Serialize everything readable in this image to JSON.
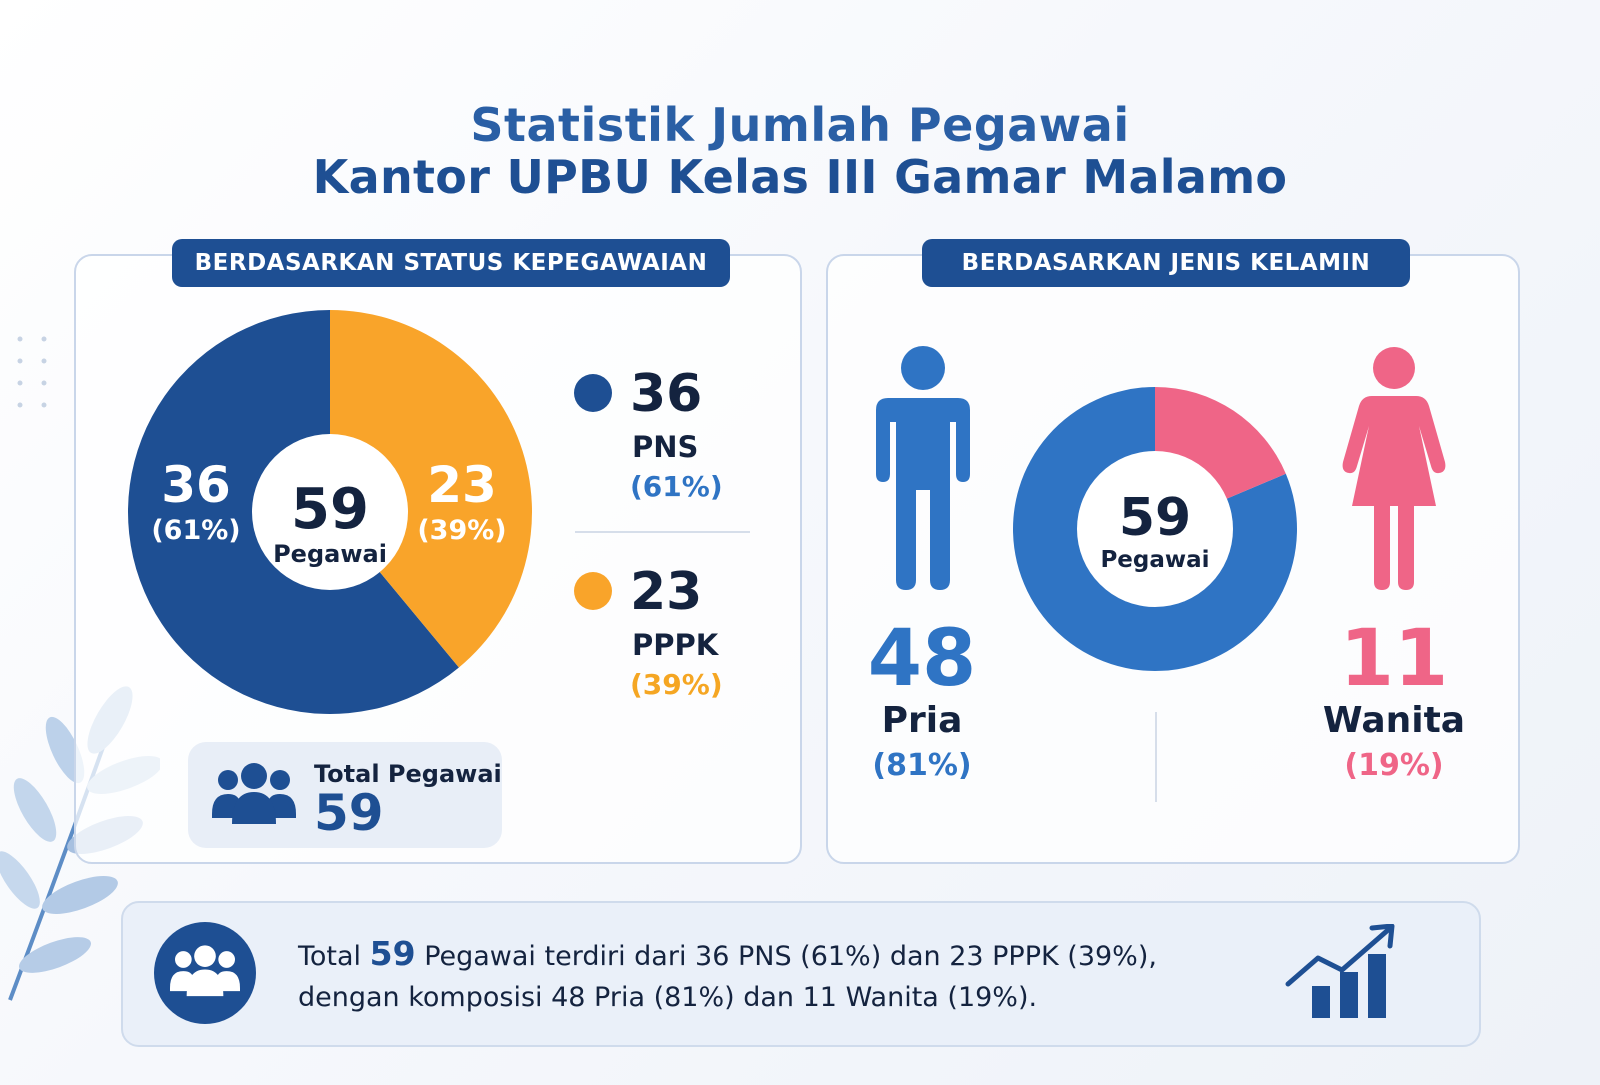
{
  "title": {
    "line1": "Statistik Jumlah Pegawai",
    "line2": "Kantor UPBU Kelas III Gamar Malamo"
  },
  "colors": {
    "title": "#2a5fa5",
    "header_bg": "#1e4f93",
    "pns": "#1e4f93",
    "pppk": "#f9a42a",
    "pria": "#2f74c4",
    "wanita": "#ef6587"
  },
  "status_panel": {
    "header": "BERDASARKAN STATUS KEPEGAWAIAN",
    "center_value": "59",
    "center_label": "Pegawai",
    "total_label": "Total Pegawai",
    "total_value": "59",
    "total_icon": "people-group-icon"
  },
  "gender_panel": {
    "header": "BERDASARKAN JENIS KELAMIN",
    "center_value": "59",
    "center_label": "Pegawai",
    "male_icon": "male-person-icon",
    "female_icon": "female-person-icon"
  },
  "summary": {
    "prefix": "Total",
    "total": "59",
    "line1_rest": "Pegawai terdiri dari 36 PNS (61%) dan 23 PPPK (39%),",
    "line2": "dengan komposisi 48 Pria (81%) dan 11 Wanita (19%).",
    "icon": "people-group-icon",
    "trend_icon": "growth-chart-icon"
  },
  "chart_data": [
    {
      "type": "pie",
      "categories": [
        "PNS",
        "PPPK"
      ],
      "values": [
        36,
        23
      ],
      "value_labels": [
        "36",
        "23"
      ],
      "percent_labels": [
        "(61%)",
        "(39%)"
      ],
      "center_text": [
        "59",
        "Pegawai"
      ]
    },
    {
      "type": "pie",
      "categories": [
        "Pria",
        "Wanita"
      ],
      "values": [
        48,
        11
      ],
      "value_labels": [
        "48",
        "11"
      ],
      "percent_labels": [
        "(81%)",
        "(19%)"
      ],
      "center_text": [
        "59",
        "Pegawai"
      ]
    }
  ]
}
